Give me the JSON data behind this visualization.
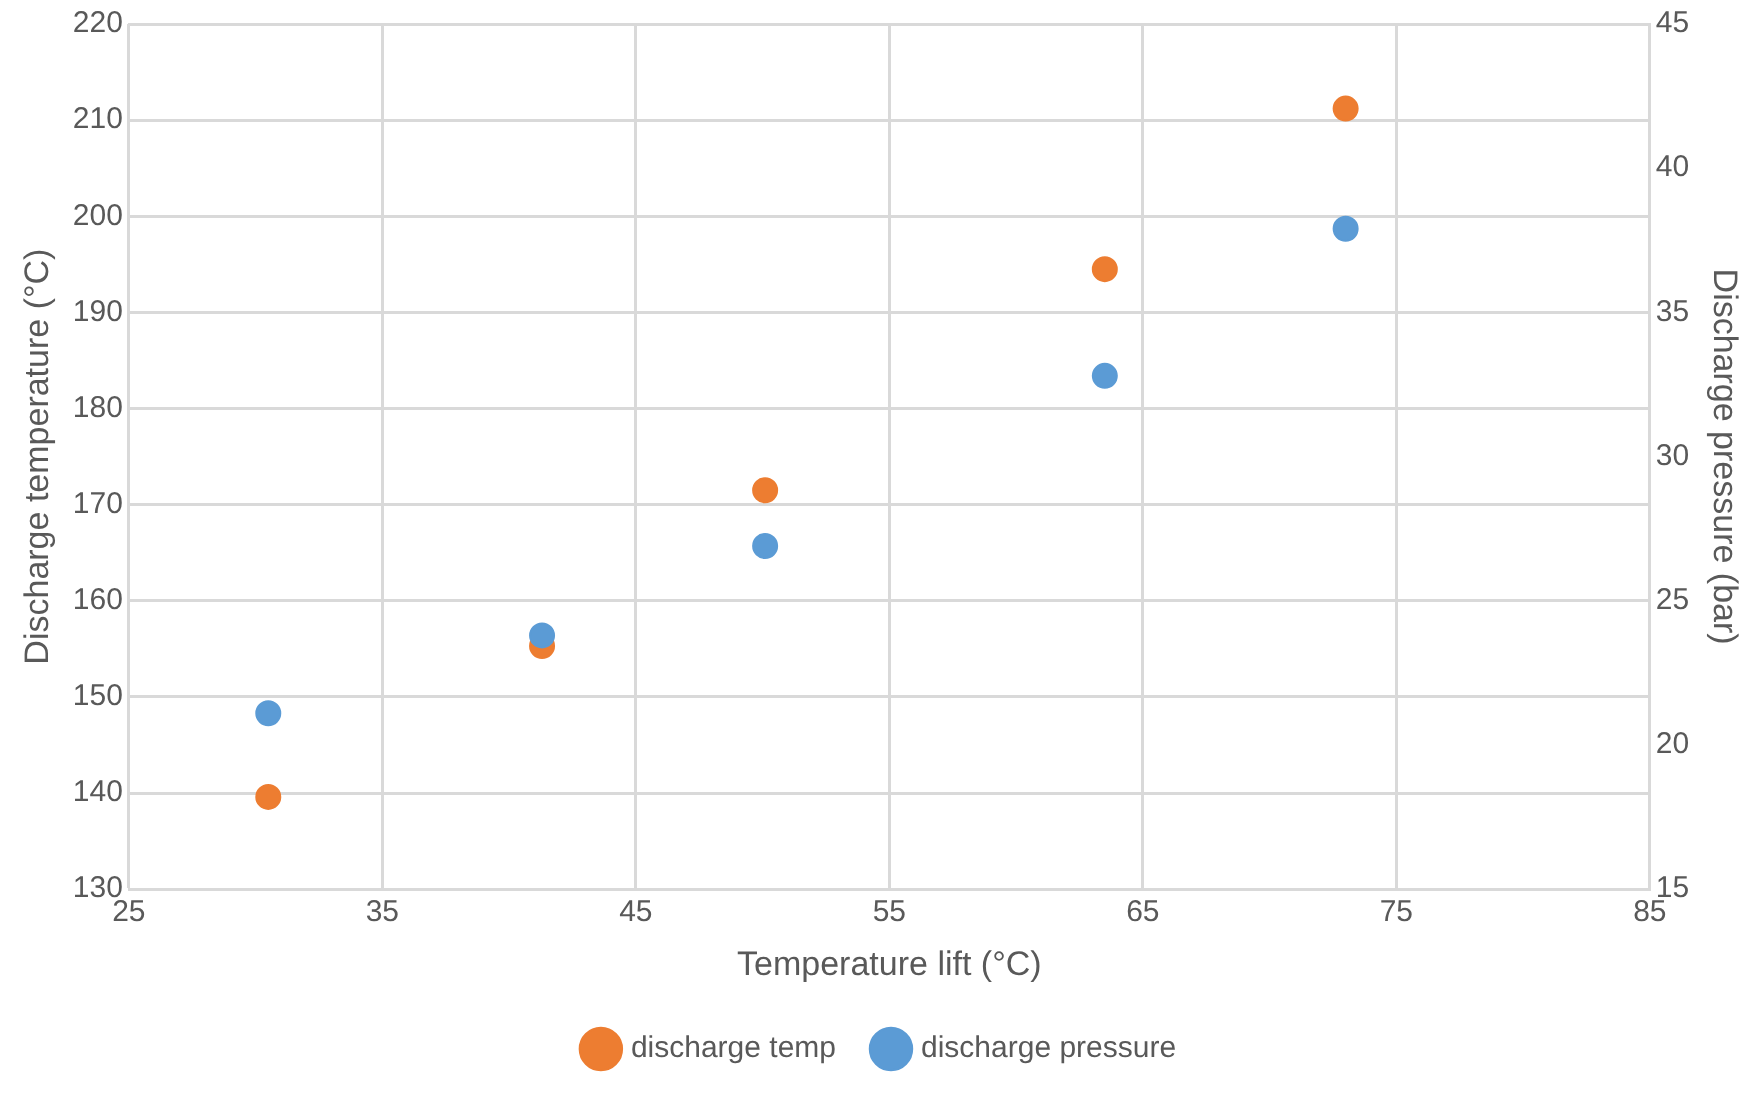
{
  "chart_data": {
    "type": "scatter",
    "xlabel": "Temperature lift (°C)",
    "ylabel": "Discharge temperature (°C)",
    "y2label": "Discharge pressure (bar)",
    "x": [
      30.5,
      41.3,
      50.1,
      63.5,
      73.0
    ],
    "series": [
      {
        "name": "discharge temp",
        "color": "#ed7d31",
        "values": [
          139.6,
          155.3,
          171.5,
          194.5,
          211.2
        ]
      },
      {
        "name": "discharge pressure",
        "color": "#5b9bd5",
        "axis": "y2",
        "values": [
          21.1,
          23.8,
          26.9,
          32.8,
          37.9
        ]
      }
    ],
    "xlim": [
      25,
      85
    ],
    "xticks": [
      25,
      35,
      45,
      55,
      65,
      75,
      85
    ],
    "ylim": [
      130,
      220
    ],
    "yticks": [
      130,
      140,
      150,
      160,
      170,
      180,
      190,
      200,
      210,
      220
    ],
    "y2lim": [
      15,
      45
    ],
    "y2ticks": [
      15,
      20,
      25,
      30,
      35,
      40,
      45
    ],
    "grid": true,
    "legend": "bottom",
    "marker": "circle"
  }
}
